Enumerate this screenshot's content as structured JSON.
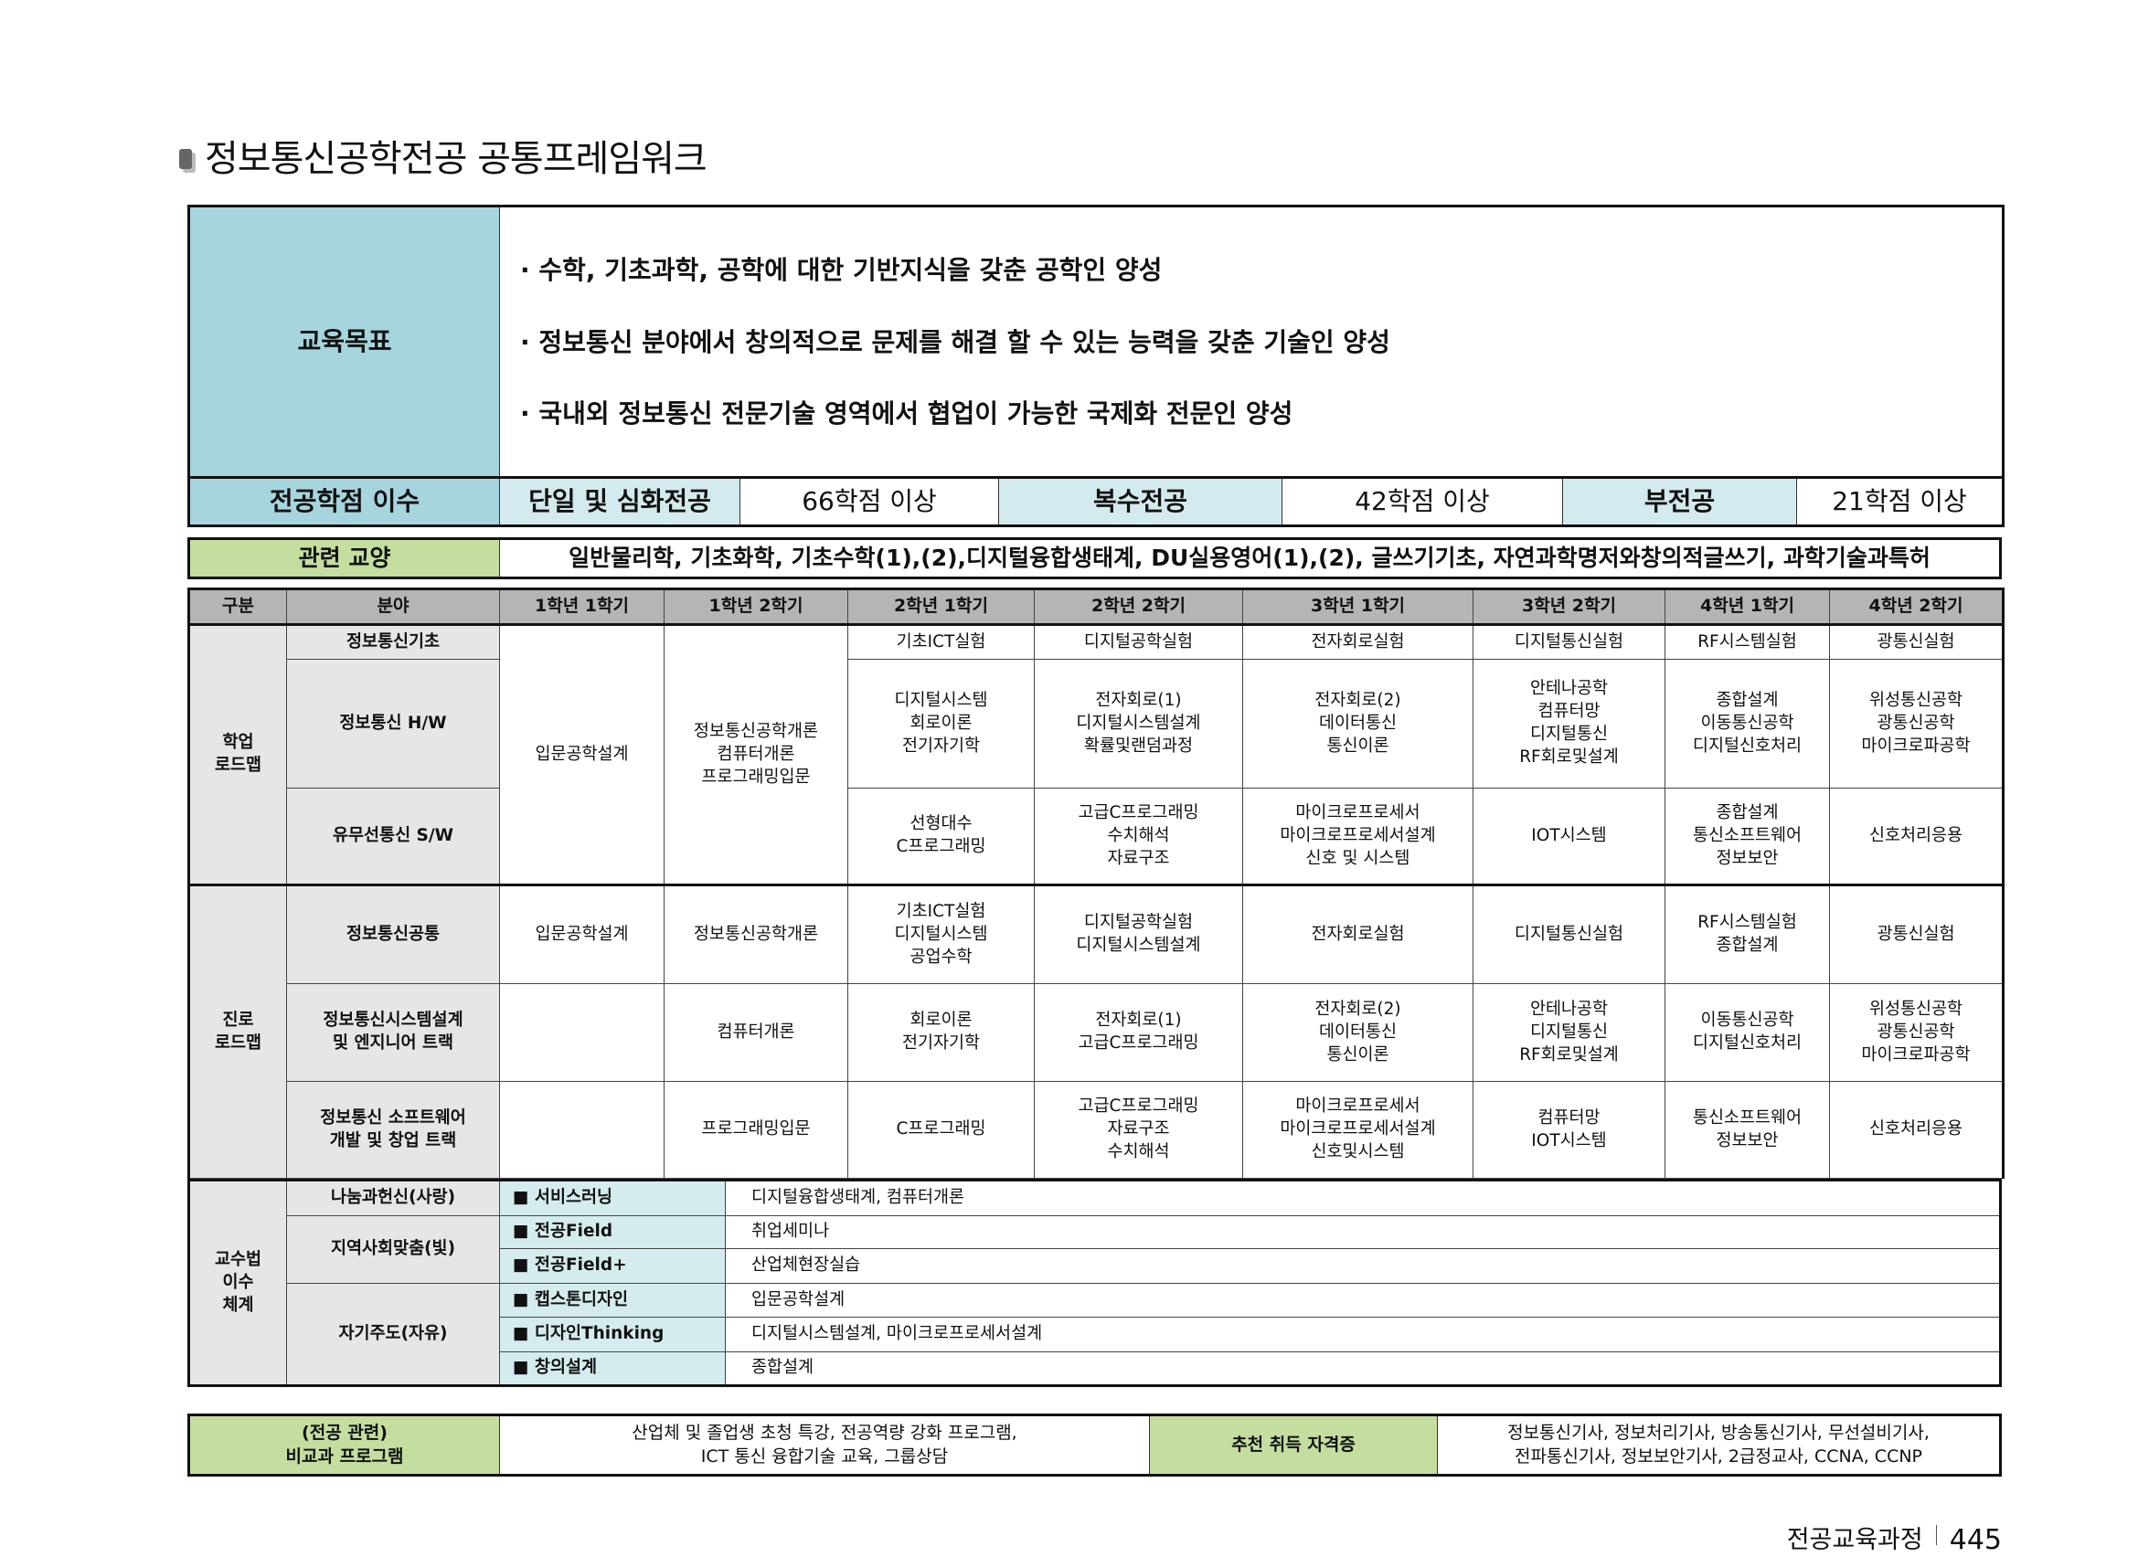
{
  "title": "정보통신공학전공 공통프레임워크",
  "goals": {
    "label": "교육목표",
    "items": [
      "·  수학, 기초과학, 공학에 대한 기반지식을 갖춘 공학인 양성",
      "·  정보통신 분야에서 창의적으로 문제를 해결 할 수 있는 능력을 갖춘 기술인 양성",
      "·  국내외 정보통신 전문기술 영역에서 협업이 가능한 국제화 전문인 양성"
    ]
  },
  "credits": {
    "label": "전공학점 이수",
    "single_label": "단일 및 심화전공",
    "single_value": "66학점 이상",
    "double_label": "복수전공",
    "double_value": "42학점 이상",
    "minor_label": "부전공",
    "minor_value": "21학점 이상"
  },
  "related": {
    "label": "관련 교양",
    "value": "일반물리학, 기초화학, 기초수학(1),(2),디지털융합생태계, DU실용영어(1),(2), 글쓰기기초, 자연과학명저와창의적글쓰기, 과학기술과특허"
  },
  "roadmap": {
    "headers": [
      "구분",
      "분야",
      "1학년 1학기",
      "1학년 2학기",
      "2학년 1학기",
      "2학년 2학기",
      "3학년 1학기",
      "3학년 2학기",
      "4학년 1학기",
      "4학년 2학기"
    ],
    "sections": [
      {
        "label": "학업\n로드맵",
        "rows": [
          {
            "field": "정보통신기초",
            "cells": [
              "입문공학설계",
              "정보통신공학개론\n컴퓨터개론\n프로그래밍입문",
              "기초ICT실험",
              "디지털공학실험",
              "전자회로실험",
              "디지털통신실험",
              "RF시스템실험",
              "광통신실험"
            ]
          },
          {
            "field": "정보통신 H/W",
            "cells": [
              "디지털시스템\n회로이론\n전기자기학",
              "전자회로(1)\n디지털시스템설계\n확률및랜덤과정",
              "전자회로(2)\n데이터통신\n통신이론",
              "안테나공학\n컴퓨터망\n디지털통신\nRF회로및설계",
              "종합설계\n이동통신공학\n디지털신호처리",
              "위성통신공학\n광통신공학\n마이크로파공학"
            ]
          },
          {
            "field": "유무선통신 S/W",
            "cells": [
              "선형대수\nC프로그래밍",
              "고급C프로그래밍\n수치해석\n자료구조",
              "마이크로프로세서\n마이크로프로세서설계\n신호 및 시스템",
              "IOT시스템",
              "종합설계\n통신소프트웨어\n정보보안",
              "신호처리응용"
            ]
          }
        ]
      },
      {
        "label": "진로\n로드맵",
        "rows": [
          {
            "field": "정보통신공통",
            "cells": [
              "입문공학설계",
              "정보통신공학개론",
              "기초ICT실험\n디지털시스템\n공업수학",
              "디지털공학실험\n디지털시스템설계",
              "전자회로실험",
              "디지털통신실험",
              "RF시스템실험\n종합설계",
              "광통신실험"
            ]
          },
          {
            "field": "정보통신시스템설계\n및 엔지니어 트랙",
            "cells": [
              "",
              "컴퓨터개론",
              "회로이론\n전기자기학",
              "전자회로(1)\n고급C프로그래밍",
              "전자회로(2)\n데이터통신\n통신이론",
              "안테나공학\n디지털통신\nRF회로및설계",
              "이동통신공학\n디지털신호처리",
              "위성통신공학\n광통신공학\n마이크로파공학"
            ]
          },
          {
            "field": "정보통신 소프트웨어\n개발 및 창업 트랙",
            "cells": [
              "",
              "프로그래밍입문",
              "C프로그래밍",
              "고급C프로그래밍\n자료구조\n수치해석",
              "마이크로프로세서\n마이크로프로세서설계\n신호및시스템",
              "컴퓨터망\nIOT시스템",
              "통신소프트웨어\n정보보안",
              "신호처리응용"
            ]
          }
        ]
      }
    ]
  },
  "teaching": {
    "label": "교수법\n이수\n체계",
    "groups": [
      {
        "name": "나눔과헌신(사랑)",
        "items": [
          {
            "method": "■ 서비스러닝",
            "courses": "디지털융합생태계, 컴퓨터개론"
          }
        ]
      },
      {
        "name": "지역사회맞춤(빛)",
        "items": [
          {
            "method": "■ 전공Field",
            "courses": "취업세미나"
          },
          {
            "method": "■ 전공Field+",
            "courses": "산업체현장실습"
          }
        ]
      },
      {
        "name": "자기주도(자유)",
        "items": [
          {
            "method": "■ 캡스톤디자인",
            "courses": "입문공학설계"
          },
          {
            "method": "■ 디자인Thinking",
            "courses": "디지털시스템설계, 마이크로프로세서설계"
          },
          {
            "method": "■ 창의설계",
            "courses": "종합설계"
          }
        ]
      }
    ]
  },
  "extra": {
    "program_label": "(전공 관련)\n비교과 프로그램",
    "program_value": "산업체 및 졸업생 초청 특강, 전공역량 강화 프로그램,\nICT 통신 융합기술 교육, 그룹상담",
    "cert_label": "추천 취득 자격증",
    "cert_value": "정보통신기사, 정보처리기사, 방송통신기사, 무선설비기사,\n전파통신기사, 정보보안기사, 2급정교사, CCNA, CCNP"
  },
  "footer": {
    "section": "전공교육과정",
    "page": "445"
  },
  "colors": {
    "teal": "#a6d5de",
    "light_teal": "#d3ebee",
    "green": "#c4de9f",
    "header_gray": "#b5b5b5",
    "cell_gray": "#e6e6e6"
  }
}
